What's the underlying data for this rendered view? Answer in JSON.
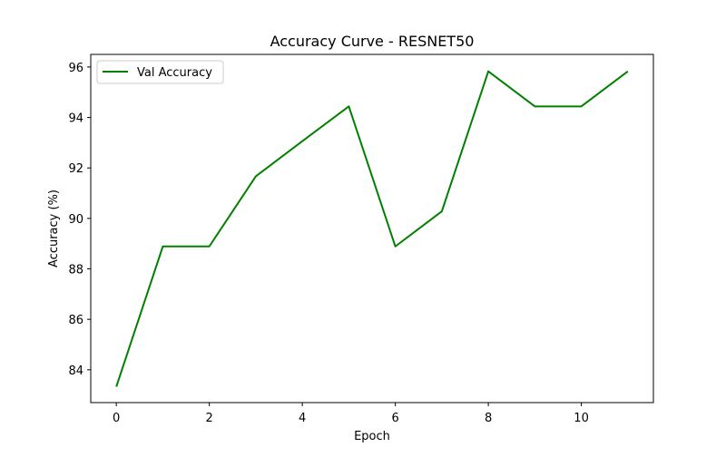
{
  "chart_data": {
    "type": "line",
    "title": "Accuracy Curve - RESNET50",
    "xlabel": "Epoch",
    "ylabel": "Accuracy (%)",
    "xlim": [
      -0.55,
      11.55
    ],
    "ylim": [
      82.7,
      96.5
    ],
    "xticks": [
      0,
      2,
      4,
      6,
      8,
      10
    ],
    "yticks": [
      84,
      86,
      88,
      90,
      92,
      94,
      96
    ],
    "grid": false,
    "legend_position": "upper-left",
    "series": [
      {
        "name": "Val Accuracy",
        "color": "#008000",
        "x": [
          0,
          1,
          2,
          3,
          4,
          5,
          6,
          7,
          8,
          9,
          10,
          11
        ],
        "y": [
          83.33,
          88.89,
          88.89,
          91.67,
          93.06,
          94.44,
          88.89,
          90.28,
          95.83,
          94.44,
          94.44,
          95.83
        ]
      }
    ]
  }
}
